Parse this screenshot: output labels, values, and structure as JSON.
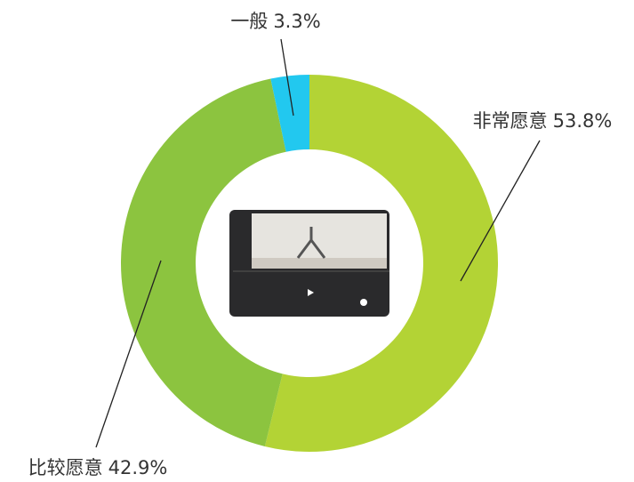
{
  "chart_data": {
    "type": "pie",
    "donut": true,
    "categories": [
      "非常愿意",
      "比较愿意",
      "一般"
    ],
    "values": [
      53.8,
      42.9,
      3.3
    ],
    "value_labels": [
      "53.8%",
      "42.9%",
      "3.3%"
    ],
    "colors": [
      "#b3d335",
      "#8cc43f",
      "#22c8ef"
    ]
  }
}
